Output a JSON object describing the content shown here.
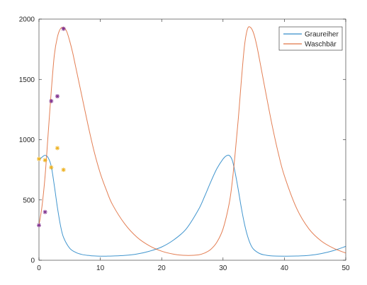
{
  "chart_data": {
    "type": "line",
    "xlim": [
      0,
      50
    ],
    "ylim": [
      0,
      2000
    ],
    "x_ticks": [
      "0",
      "10",
      "20",
      "30",
      "40",
      "50"
    ],
    "y_ticks": [
      "0",
      "500",
      "1000",
      "1500",
      "2000"
    ],
    "grid": false,
    "legend_position": "top-right",
    "series": [
      {
        "name": "Graureiher",
        "color": "#0072bd",
        "x": [
          0,
          0.5,
          1,
          1.5,
          2,
          2.5,
          3,
          3.5,
          4,
          5,
          6,
          7,
          8,
          9,
          10,
          11,
          12,
          14,
          16,
          18,
          20,
          22,
          24,
          26,
          27,
          28,
          29,
          30,
          30.5,
          31,
          31.5,
          32,
          32.5,
          33,
          33.5,
          34,
          34.5,
          35,
          36,
          37,
          38,
          40,
          42,
          44,
          46,
          48,
          50
        ],
        "y": [
          830,
          855,
          870,
          850,
          780,
          620,
          440,
          290,
          190,
          100,
          65,
          48,
          40,
          36,
          34,
          34,
          35,
          40,
          52,
          75,
          110,
          170,
          260,
          420,
          530,
          650,
          760,
          840,
          865,
          870,
          830,
          720,
          580,
          430,
          300,
          200,
          130,
          90,
          55,
          42,
          36,
          34,
          35,
          40,
          55,
          80,
          115
        ]
      },
      {
        "name": "Waschbär",
        "color": "#d95319",
        "x": [
          0,
          0.5,
          1,
          1.5,
          2,
          2.5,
          3,
          3.5,
          4,
          4.5,
          5,
          5.5,
          6,
          7,
          8,
          9,
          10,
          11,
          12,
          14,
          16,
          18,
          20,
          22,
          24,
          26,
          27,
          28,
          29,
          30,
          31,
          31.5,
          32,
          32.5,
          33,
          33.5,
          34,
          34.5,
          35,
          35.5,
          36,
          37,
          38,
          39,
          40,
          42,
          44,
          46,
          48,
          50
        ],
        "y": [
          290,
          450,
          700,
          1050,
          1400,
          1700,
          1850,
          1920,
          1930,
          1900,
          1820,
          1720,
          1600,
          1360,
          1120,
          900,
          720,
          580,
          460,
          300,
          190,
          120,
          75,
          50,
          40,
          45,
          60,
          90,
          150,
          260,
          470,
          650,
          900,
          1180,
          1500,
          1780,
          1920,
          1930,
          1880,
          1780,
          1650,
          1380,
          1120,
          890,
          700,
          430,
          260,
          160,
          100,
          60
        ]
      },
      {
        "name": "",
        "color": "#edb120",
        "marker": "star",
        "x": [
          0,
          1,
          2,
          3,
          4
        ],
        "y": [
          840,
          830,
          770,
          930,
          750
        ]
      },
      {
        "name": "",
        "color": "#7e2f8e",
        "marker": "star",
        "x": [
          0,
          1,
          2,
          3,
          4
        ],
        "y": [
          290,
          400,
          1320,
          1360,
          1920
        ]
      }
    ]
  }
}
